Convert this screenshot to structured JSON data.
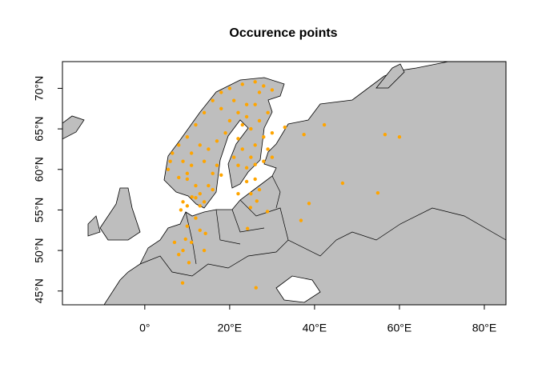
{
  "chart_data": {
    "type": "scatter",
    "title": "Occurence points",
    "color": "#ffa500",
    "xlim": [
      -19.4,
      85.1
    ],
    "ylim": [
      43.3,
      73.3
    ],
    "xticks": [
      {
        "value": 0,
        "label": "0°"
      },
      {
        "value": 20,
        "label": "20°E"
      },
      {
        "value": 40,
        "label": "40°E"
      },
      {
        "value": 60,
        "label": "60°E"
      },
      {
        "value": 80,
        "label": "80°E"
      }
    ],
    "yticks": [
      {
        "value": 45,
        "label": "45°N"
      },
      {
        "value": 50,
        "label": "50°N"
      },
      {
        "value": 55,
        "label": "55°N"
      },
      {
        "value": 60,
        "label": "60°N"
      },
      {
        "value": 65,
        "label": "65°N"
      },
      {
        "value": 70,
        "label": "70°N"
      }
    ],
    "x": [
      5.5,
      6,
      6.5,
      8,
      10,
      12,
      14,
      16,
      18,
      20,
      23,
      26,
      28,
      30,
      8,
      10,
      11,
      12,
      13,
      14,
      13,
      15,
      16,
      17,
      18,
      14,
      15,
      17,
      19,
      20,
      22,
      18,
      21,
      24,
      13,
      11,
      9,
      16,
      12,
      10,
      22,
      24,
      26,
      28,
      25,
      23,
      26,
      28,
      25,
      27,
      29,
      24,
      26,
      29,
      30,
      22,
      21,
      27,
      23,
      30,
      24,
      26,
      27,
      22,
      25,
      9,
      10,
      8.5,
      12,
      10,
      11,
      9,
      8,
      13,
      7,
      14,
      56.6,
      60,
      46.6,
      54.9,
      38.7,
      36.8,
      26.2,
      10.4,
      9.6,
      11.1,
      14.3,
      24.2,
      24.9,
      28.9,
      26.4,
      42.3,
      37.5,
      33,
      8.9
    ],
    "y": [
      60,
      61,
      62,
      63,
      64,
      65.5,
      67,
      68.5,
      69.5,
      70,
      70.5,
      70.8,
      70.3,
      69.8,
      59,
      59.5,
      60.5,
      58,
      57,
      56,
      55.5,
      58,
      59.5,
      60.5,
      59.3,
      61,
      62.5,
      63.5,
      64.5,
      66,
      67,
      67.5,
      68.5,
      68,
      63,
      62,
      61,
      57.5,
      56.5,
      58.8,
      60.5,
      60.2,
      60.6,
      61,
      61.5,
      62.5,
      63,
      64,
      65,
      66,
      67,
      66.5,
      68,
      62.5,
      61.5,
      63.8,
      61.5,
      69.5,
      65.5,
      64.5,
      58.5,
      58.8,
      57.5,
      57,
      57,
      56,
      55.5,
      55,
      54,
      53,
      51,
      50,
      49.5,
      52.5,
      51,
      50,
      64.3,
      64,
      58.3,
      57.1,
      55.8,
      53.7,
      45.4,
      48.5,
      51.4,
      56.6,
      52.1,
      52.7,
      55.3,
      54.8,
      56.1,
      65.5,
      64.3,
      65.2,
      46
    ]
  }
}
